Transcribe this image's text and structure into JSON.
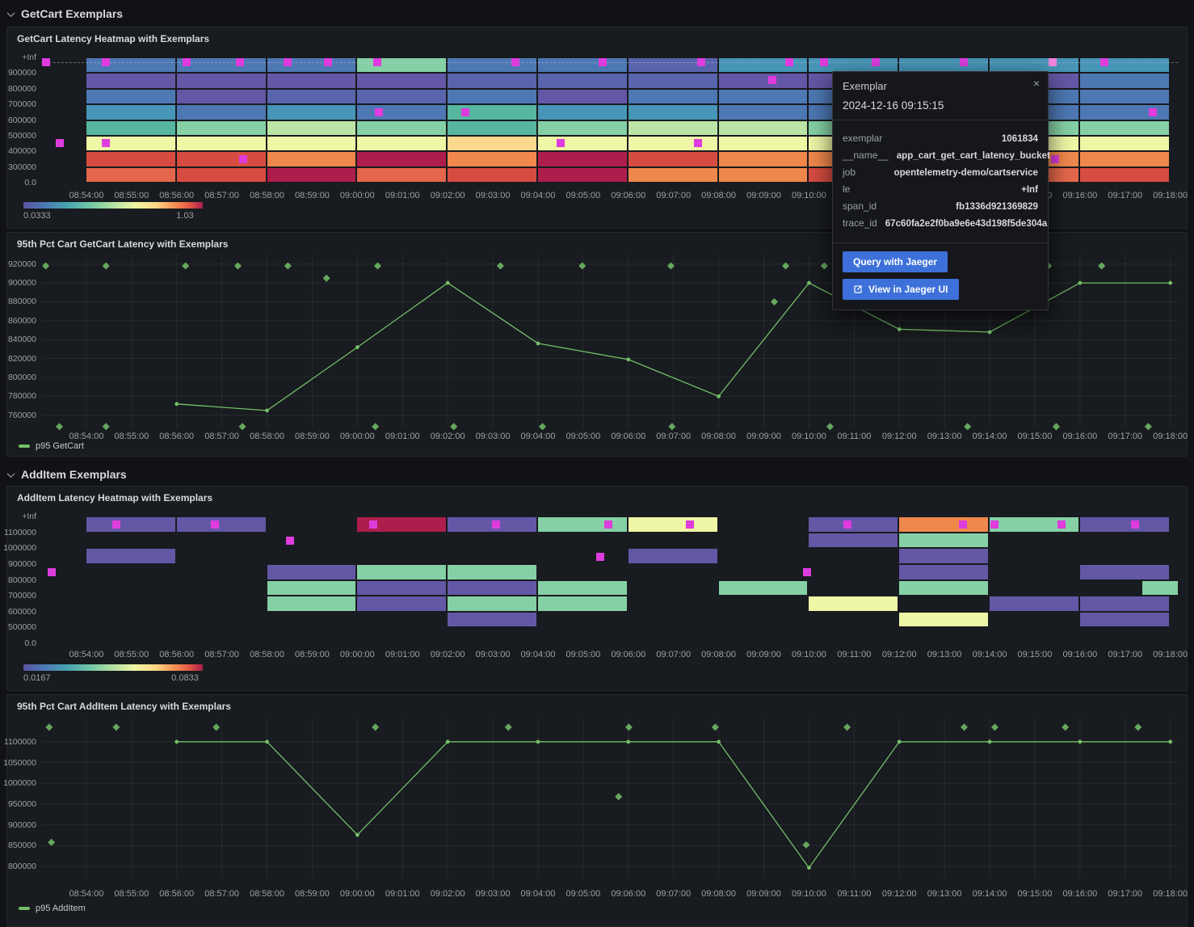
{
  "sections": [
    {
      "title": "GetCart Exemplars"
    },
    {
      "title": "AddItem Exemplars"
    }
  ],
  "colors": {
    "series_green": "#73bf69",
    "exemplar_magenta": "#de3cde",
    "exemplar_highlight": "#ef86e0",
    "button_blue": "#3d71d9",
    "panel_bg": "#181b1f",
    "page_bg": "#111217"
  },
  "palette": {
    "B": "#4d78b3",
    "BP": "#5864ad",
    "P": "#6457a6",
    "T": "#4795b7",
    "TG": "#56b69e",
    "G": "#85d0a5",
    "LG": "#bce4a4",
    "Y": "#eff6a5",
    "AY": "#fcd88e",
    "O": "#f0884c",
    "OR": "#e4674b",
    "R": "#d74c41",
    "C": "#ae1e4c"
  },
  "x_axis": {
    "start": "08:53:00",
    "end": "09:18:10"
  },
  "x_tick_labels": [
    "08:54:00",
    "08:55:00",
    "08:56:00",
    "08:57:00",
    "08:58:00",
    "08:59:00",
    "09:00:00",
    "09:01:00",
    "09:02:00",
    "09:03:00",
    "09:04:00",
    "09:05:00",
    "09:06:00",
    "09:07:00",
    "09:08:00",
    "09:09:00",
    "09:10:00",
    "09:11:00",
    "09:12:00",
    "09:13:00",
    "09:14:00",
    "09:15:00",
    "09:16:00",
    "09:17:00",
    "09:18:00"
  ],
  "chart_data": [
    {
      "type": "heatmap",
      "title": "GetCart Latency Heatmap with Exemplars",
      "y_ticks": [
        "+Inf",
        "900000",
        "800000",
        "700000",
        "600000",
        "500000",
        "400000",
        "300000",
        "0.0"
      ],
      "first_bucket": "08:54:00",
      "bucket_minutes": 2,
      "rows": [
        [
          "B",
          "B",
          "B",
          "G",
          "B",
          "B",
          "BP",
          "T",
          "T",
          "T",
          "T",
          "T"
        ],
        [
          "P",
          "P",
          "P",
          "P",
          "BP",
          "BP",
          "BP",
          "P",
          "P",
          "P",
          "P",
          "B"
        ],
        [
          "B",
          "P",
          "BP",
          "BP",
          "B",
          "P",
          "B",
          "B",
          "B",
          "B",
          "B",
          "B"
        ],
        [
          "T",
          "B",
          "T",
          "B",
          "TG",
          "T",
          "T",
          "B",
          "B",
          "B",
          "B",
          "B"
        ],
        [
          "TG",
          "G",
          "LG",
          "G",
          "TG",
          "G",
          "LG",
          "LG",
          "G",
          "G",
          "G",
          "G"
        ],
        [
          "Y",
          "Y",
          "Y",
          "Y",
          "AY",
          "Y",
          "Y",
          "Y",
          "Y",
          "Y",
          "Y",
          "Y"
        ],
        [
          "R",
          "R",
          "O",
          "C",
          "O",
          "C",
          "R",
          "O",
          "O",
          "O",
          "O",
          "O"
        ],
        [
          "OR",
          "R",
          "C",
          "OR",
          "R",
          "C",
          "O",
          "O",
          "R",
          "R",
          "OR",
          "R"
        ]
      ],
      "extra_cells": [],
      "hover_line_y_pct": 3.9,
      "exemplars": [
        {
          "x": 0.4,
          "y": 3.9
        },
        {
          "x": 5.7,
          "y": 3.9
        },
        {
          "x": 12.8,
          "y": 3.9
        },
        {
          "x": 17.5,
          "y": 3.9
        },
        {
          "x": 21.7,
          "y": 3.9
        },
        {
          "x": 25.2,
          "y": 3.9
        },
        {
          "x": 29.6,
          "y": 3.9
        },
        {
          "x": 41.7,
          "y": 3.9
        },
        {
          "x": 49.4,
          "y": 3.9
        },
        {
          "x": 58.1,
          "y": 3.9
        },
        {
          "x": 65.8,
          "y": 3.9
        },
        {
          "x": 68.9,
          "y": 3.9
        },
        {
          "x": 73.4,
          "y": 3.9
        },
        {
          "x": 81.2,
          "y": 3.9
        },
        {
          "x": 89.0,
          "y": 3.9,
          "hl": true
        },
        {
          "x": 93.5,
          "y": 3.9
        },
        {
          "x": 64.3,
          "y": 18.0
        },
        {
          "x": 29.7,
          "y": 43.9
        },
        {
          "x": 37.3,
          "y": 43.9
        },
        {
          "x": 97.8,
          "y": 43.9
        },
        {
          "x": 1.6,
          "y": 68.4
        },
        {
          "x": 5.7,
          "y": 68.4
        },
        {
          "x": 45.7,
          "y": 68.4
        },
        {
          "x": 57.8,
          "y": 68.4
        },
        {
          "x": 17.8,
          "y": 81.3
        },
        {
          "x": 89.2,
          "y": 81.3
        }
      ],
      "colorbar": {
        "min": "0.0333",
        "max": "1.03"
      }
    },
    {
      "type": "line",
      "title": "95th Pct Cart GetCart Latency with Exemplars",
      "ylim": [
        747000,
        930000
      ],
      "y_ticks": [
        920000,
        900000,
        880000,
        860000,
        840000,
        820000,
        800000,
        780000,
        760000
      ],
      "series": [
        {
          "name": "p95 GetCart",
          "points": [
            {
              "t": "08:56:00",
              "v": 772000
            },
            {
              "t": "08:58:00",
              "v": 765000
            },
            {
              "t": "09:00:00",
              "v": 832000
            },
            {
              "t": "09:02:00",
              "v": 900000
            },
            {
              "t": "09:04:00",
              "v": 836000
            },
            {
              "t": "09:06:00",
              "v": 819000
            },
            {
              "t": "09:08:00",
              "v": 780000
            },
            {
              "t": "09:10:00",
              "v": 900000
            },
            {
              "t": "09:12:00",
              "v": 851000
            },
            {
              "t": "09:14:00",
              "v": 848000
            },
            {
              "t": "09:16:00",
              "v": 900000
            },
            {
              "t": "09:18:00",
              "v": 900000
            }
          ]
        }
      ],
      "exemplars": [
        {
          "x": 0.4,
          "v": 918000
        },
        {
          "x": 5.7,
          "v": 918000
        },
        {
          "x": 12.7,
          "v": 918000
        },
        {
          "x": 17.3,
          "v": 918000
        },
        {
          "x": 21.7,
          "v": 918000
        },
        {
          "x": 29.6,
          "v": 918000
        },
        {
          "x": 40.4,
          "v": 918000
        },
        {
          "x": 47.6,
          "v": 918000
        },
        {
          "x": 55.4,
          "v": 918000
        },
        {
          "x": 65.5,
          "v": 918000
        },
        {
          "x": 68.9,
          "v": 918000
        },
        {
          "x": 88.6,
          "v": 918000
        },
        {
          "x": 93.3,
          "v": 918000
        },
        {
          "x": 25.1,
          "v": 905000
        },
        {
          "x": 64.5,
          "v": 880000
        },
        {
          "x": 1.6,
          "v": 748000
        },
        {
          "x": 5.7,
          "v": 748000
        },
        {
          "x": 17.7,
          "v": 748000
        },
        {
          "x": 29.4,
          "v": 748000
        },
        {
          "x": 36.3,
          "v": 748000
        },
        {
          "x": 44.1,
          "v": 748000
        },
        {
          "x": 55.5,
          "v": 748000
        },
        {
          "x": 69.4,
          "v": 748000
        },
        {
          "x": 81.5,
          "v": 748000
        },
        {
          "x": 89.3,
          "v": 748000
        },
        {
          "x": 97.4,
          "v": 748000
        }
      ]
    },
    {
      "type": "heatmap",
      "title": "AddItem Latency Heatmap with Exemplars",
      "y_ticks": [
        "+Inf",
        "1100000",
        "1000000",
        "900000",
        "800000",
        "700000",
        "600000",
        "500000",
        "0.0"
      ],
      "first_bucket": "08:54:00",
      "bucket_minutes": 2,
      "rows": [
        [
          "P",
          "P",
          null,
          "C",
          "P",
          "G",
          "Y",
          null,
          "P",
          "O",
          "G",
          "P"
        ],
        [
          null,
          null,
          null,
          null,
          null,
          null,
          null,
          null,
          "P",
          "G",
          null,
          null
        ],
        [
          "P",
          null,
          null,
          null,
          null,
          null,
          "P",
          null,
          null,
          "P",
          null,
          null
        ],
        [
          null,
          null,
          "P",
          "G",
          "G",
          null,
          null,
          null,
          null,
          "P",
          null,
          "P"
        ],
        [
          null,
          null,
          "G",
          "P",
          "P",
          "G",
          null,
          "G",
          null,
          "G",
          null,
          null
        ],
        [
          null,
          null,
          "G",
          "P",
          "G",
          "G",
          null,
          null,
          "Y",
          null,
          "P",
          "P"
        ],
        [
          null,
          null,
          null,
          null,
          "P",
          null,
          null,
          null,
          null,
          "Y",
          null,
          "P"
        ],
        [
          null,
          null,
          null,
          null,
          null,
          null,
          null,
          null,
          null,
          null,
          null,
          null
        ]
      ],
      "extra_cells": [
        {
          "r": 4,
          "x_pct": 96.9,
          "w_pct": 3.1,
          "k": "G"
        }
      ],
      "hover_line_y_pct": null,
      "exemplars": [
        {
          "x": 6.6,
          "y": 6.4
        },
        {
          "x": 15.3,
          "y": 6.4
        },
        {
          "x": 29.2,
          "y": 6.4
        },
        {
          "x": 40.0,
          "y": 6.4
        },
        {
          "x": 49.9,
          "y": 6.4
        },
        {
          "x": 57.1,
          "y": 6.4
        },
        {
          "x": 70.9,
          "y": 6.4
        },
        {
          "x": 81.1,
          "y": 6.4
        },
        {
          "x": 83.9,
          "y": 6.4
        },
        {
          "x": 89.8,
          "y": 6.4
        },
        {
          "x": 96.2,
          "y": 6.4
        },
        {
          "x": 21.9,
          "y": 19.1
        },
        {
          "x": 49.2,
          "y": 31.8
        },
        {
          "x": 0.9,
          "y": 43.9
        },
        {
          "x": 67.4,
          "y": 43.9
        }
      ],
      "colorbar": {
        "min": "0.0167",
        "max": "0.0833"
      }
    },
    {
      "type": "line",
      "title": "95th Pct Cart AddItem Latency with Exemplars",
      "ylim": [
        773000,
        1156000
      ],
      "y_ticks": [
        1100000,
        1050000,
        1000000,
        950000,
        900000,
        850000,
        800000
      ],
      "series": [
        {
          "name": "p95 AddItem",
          "points": [
            {
              "t": "08:56:00",
              "v": 1100000
            },
            {
              "t": "08:58:00",
              "v": 1100000
            },
            {
              "t": "09:00:00",
              "v": 876000
            },
            {
              "t": "09:02:00",
              "v": 1100000
            },
            {
              "t": "09:04:00",
              "v": 1100000
            },
            {
              "t": "09:06:00",
              "v": 1100000
            },
            {
              "t": "09:08:00",
              "v": 1100000
            },
            {
              "t": "09:10:00",
              "v": 797000
            },
            {
              "t": "09:12:00",
              "v": 1100000
            },
            {
              "t": "09:14:00",
              "v": 1100000
            },
            {
              "t": "09:16:00",
              "v": 1100000
            },
            {
              "t": "09:18:00",
              "v": 1100000
            }
          ]
        }
      ],
      "exemplars": [
        {
          "x": 0.7,
          "v": 1135000
        },
        {
          "x": 6.6,
          "v": 1135000
        },
        {
          "x": 15.4,
          "v": 1135000
        },
        {
          "x": 29.4,
          "v": 1135000
        },
        {
          "x": 41.1,
          "v": 1135000
        },
        {
          "x": 51.7,
          "v": 1135000
        },
        {
          "x": 59.3,
          "v": 1135000
        },
        {
          "x": 70.9,
          "v": 1135000
        },
        {
          "x": 81.2,
          "v": 1135000
        },
        {
          "x": 83.9,
          "v": 1135000
        },
        {
          "x": 90.1,
          "v": 1135000
        },
        {
          "x": 96.5,
          "v": 1135000
        },
        {
          "x": 50.8,
          "v": 968000
        },
        {
          "x": 0.9,
          "v": 858000
        },
        {
          "x": 67.3,
          "v": 852000
        }
      ]
    }
  ],
  "tooltip": {
    "title": "Exemplar",
    "timestamp": "2024-12-16 09:15:15",
    "close_label": "×",
    "fields": [
      {
        "label": "exemplar",
        "value": "1061834"
      },
      {
        "label": "__name__",
        "value": "app_cart_get_cart_latency_bucket"
      },
      {
        "label": "job",
        "value": "opentelemetry-demo/cartservice"
      },
      {
        "label": "le",
        "value": "+Inf"
      },
      {
        "label": "span_id",
        "value": "fb1336d921369829"
      },
      {
        "label": "trace_id",
        "value": "67c60fa2e2f0ba9e6e43d198f5de304a"
      }
    ],
    "buttons": [
      {
        "label": "Query with Jaeger",
        "icon": null
      },
      {
        "label": "View in Jaeger UI",
        "icon": "external-link-icon"
      }
    ]
  }
}
